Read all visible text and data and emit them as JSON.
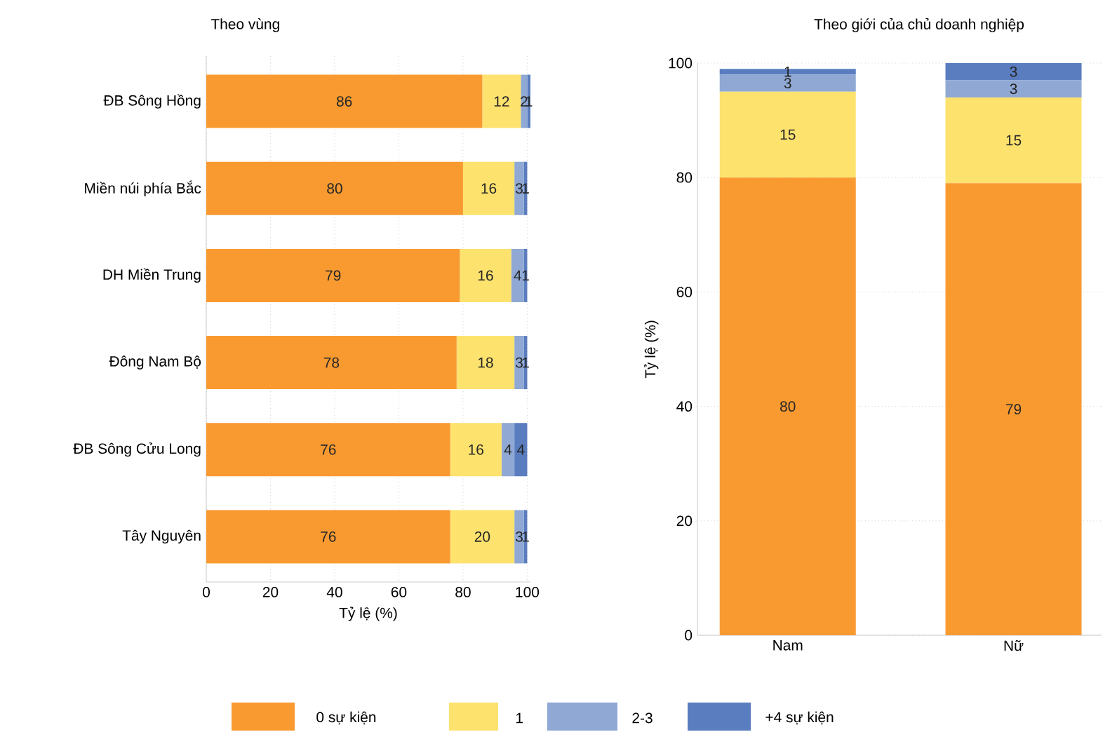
{
  "chart_data": [
    {
      "type": "bar",
      "title": "Theo vùng",
      "xlabel": "Tỷ lệ (%)",
      "orientation": "horizontal",
      "stacked": true,
      "data_labels": true,
      "grid": "x",
      "legend": "bottom",
      "categories": [
        "ĐB Sông Hồng",
        "Miền núi phía Bắc",
        "DH Miền Trung",
        "Đông Nam Bộ",
        "ĐB Sông Cửu Long",
        "Tây Nguyên"
      ],
      "xlim": [
        0,
        101
      ],
      "xticks": [
        0,
        20,
        40,
        60,
        80,
        100
      ],
      "series": [
        {
          "name": "0 sự kiện",
          "color": "#f99a31",
          "values": [
            86,
            80,
            79,
            78,
            76,
            76
          ]
        },
        {
          "name": "1",
          "color": "#fde26e",
          "values": [
            12,
            16,
            16,
            18,
            16,
            20
          ]
        },
        {
          "name": "2-3",
          "color": "#8fa8d4",
          "values": [
            2,
            3,
            4,
            3,
            4,
            3
          ]
        },
        {
          "name": "+4 sự kiện",
          "color": "#5a7dbf",
          "values": [
            1,
            1,
            1,
            1,
            4,
            1
          ]
        }
      ]
    },
    {
      "type": "bar",
      "title": "Theo giới của chủ doanh nghiệp",
      "ylabel": "Tỷ lệ (%)",
      "stacked": true,
      "data_labels": true,
      "grid": "y",
      "categories": [
        "Nam",
        "Nữ"
      ],
      "ylim": [
        0,
        100
      ],
      "yticks": [
        0,
        20,
        40,
        60,
        80,
        100
      ],
      "series": [
        {
          "color": "#f99a31",
          "values": [
            80,
            79
          ]
        },
        {
          "color": "#fde26e",
          "values": [
            15,
            15
          ]
        },
        {
          "color": "#8fa8d4",
          "values": [
            3,
            3
          ]
        },
        {
          "color": "#5a7dbf",
          "values": [
            1,
            3
          ]
        }
      ]
    }
  ]
}
